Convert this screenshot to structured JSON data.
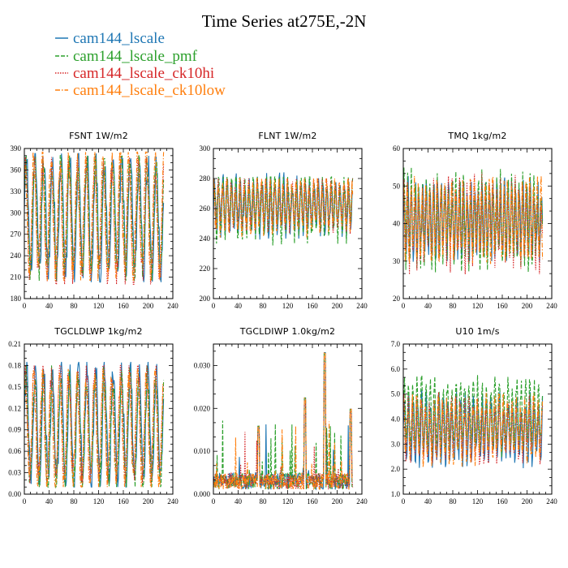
{
  "figure": {
    "title": "Time Series at275E,-2N"
  },
  "colors": {
    "cam144_lscale": "#1f77b4",
    "cam144_lscale_pmf": "#2ca02c",
    "cam144_lscale_ck10hi": "#d62728",
    "cam144_lscale_ck10low": "#ff7f0e"
  },
  "legend": [
    {
      "label": "cam144_lscale",
      "color": "#1f77b4",
      "style": "solid"
    },
    {
      "label": "cam144_lscale_pmf",
      "color": "#2ca02c",
      "style": "dashed"
    },
    {
      "label": "cam144_lscale_ck10hi",
      "color": "#d62728",
      "style": "dotted"
    },
    {
      "label": "cam144_lscale_ck10low",
      "color": "#ff7f0e",
      "style": "dash-dot"
    }
  ],
  "chart_data": [
    {
      "type": "line",
      "title": "FSNT   1W/m2",
      "xlim": [
        0,
        240
      ],
      "ylim": [
        180,
        390
      ],
      "xticks": [
        0,
        40,
        80,
        120,
        160,
        200,
        240
      ],
      "yticks": [
        180,
        210,
        240,
        270,
        300,
        330,
        360,
        390
      ],
      "ytick_labels": [
        "180",
        "210",
        "240",
        "270",
        "300",
        "330",
        "360",
        "390"
      ],
      "n_points": 226,
      "series": [
        {
          "name": "cam144_lscale",
          "x_range": [
            0,
            225
          ],
          "approx_y_range": [
            203,
            383
          ],
          "approx_mean": 295,
          "approx_period": 14
        },
        {
          "name": "cam144_lscale_pmf",
          "x_range": [
            0,
            225
          ],
          "approx_y_range": [
            205,
            380
          ],
          "approx_mean": 295,
          "approx_period": 14
        },
        {
          "name": "cam144_lscale_ck10hi",
          "x_range": [
            0,
            225
          ],
          "approx_y_range": [
            200,
            378
          ],
          "approx_mean": 290,
          "approx_period": 14
        },
        {
          "name": "cam144_lscale_ck10low",
          "x_range": [
            0,
            225
          ],
          "approx_y_range": [
            205,
            385
          ],
          "approx_mean": 297,
          "approx_period": 14
        }
      ]
    },
    {
      "type": "line",
      "title": "FLNT   1W/m2",
      "xlim": [
        0,
        240
      ],
      "ylim": [
        200,
        300
      ],
      "xticks": [
        0,
        40,
        80,
        120,
        160,
        200,
        240
      ],
      "yticks": [
        200,
        220,
        240,
        260,
        280,
        300
      ],
      "ytick_labels": [
        "200",
        "220",
        "240",
        "260",
        "280",
        "300"
      ],
      "n_points": 226,
      "series": [
        {
          "name": "cam144_lscale",
          "x_range": [
            0,
            225
          ],
          "approx_y_range": [
            228,
            285
          ],
          "approx_mean": 262,
          "approx_period": 7
        },
        {
          "name": "cam144_lscale_pmf",
          "x_range": [
            0,
            225
          ],
          "approx_y_range": [
            214,
            281
          ],
          "approx_mean": 262,
          "approx_period": 7
        },
        {
          "name": "cam144_lscale_ck10hi",
          "x_range": [
            0,
            225
          ],
          "approx_y_range": [
            227,
            280
          ],
          "approx_mean": 263,
          "approx_period": 7
        },
        {
          "name": "cam144_lscale_ck10low",
          "x_range": [
            0,
            225
          ],
          "approx_y_range": [
            225,
            280
          ],
          "approx_mean": 262,
          "approx_period": 7
        }
      ]
    },
    {
      "type": "line",
      "title": "TMQ   1kg/m2",
      "xlim": [
        0,
        240
      ],
      "ylim": [
        20,
        60
      ],
      "xticks": [
        0,
        40,
        80,
        120,
        160,
        200,
        240
      ],
      "yticks": [
        20,
        30,
        40,
        50,
        60
      ],
      "ytick_labels": [
        "20",
        "30",
        "40",
        "50",
        "60"
      ],
      "n_points": 226,
      "series": [
        {
          "name": "cam144_lscale",
          "x_range": [
            0,
            225
          ],
          "approx_y_range": [
            26,
            57
          ],
          "approx_mean": 41,
          "approx_period": 6
        },
        {
          "name": "cam144_lscale_pmf",
          "x_range": [
            0,
            225
          ],
          "approx_y_range": [
            22,
            57
          ],
          "approx_mean": 41,
          "approx_period": 6
        },
        {
          "name": "cam144_lscale_ck10hi",
          "x_range": [
            0,
            225
          ],
          "approx_y_range": [
            21,
            55
          ],
          "approx_mean": 40,
          "approx_period": 6
        },
        {
          "name": "cam144_lscale_ck10low",
          "x_range": [
            0,
            225
          ],
          "approx_y_range": [
            26,
            58
          ],
          "approx_mean": 41,
          "approx_period": 6
        }
      ]
    },
    {
      "type": "line",
      "title": "TGCLDLWP   1kg/m2",
      "xlim": [
        0,
        240
      ],
      "ylim": [
        0,
        0.21
      ],
      "xticks": [
        0,
        40,
        80,
        120,
        160,
        200,
        240
      ],
      "yticks": [
        0,
        0.03,
        0.06,
        0.09,
        0.12,
        0.15,
        0.18,
        0.21
      ],
      "ytick_labels": [
        "0.00",
        "0.03",
        "0.06",
        "0.09",
        "0.12",
        "0.15",
        "0.18",
        "0.21"
      ],
      "n_points": 226,
      "series": [
        {
          "name": "cam144_lscale",
          "x_range": [
            0,
            225
          ],
          "approx_y_range": [
            0.01,
            0.185
          ],
          "approx_mean": 0.095,
          "approx_period": 14
        },
        {
          "name": "cam144_lscale_pmf",
          "x_range": [
            0,
            225
          ],
          "approx_y_range": [
            0.01,
            0.18
          ],
          "approx_mean": 0.09,
          "approx_period": 14
        },
        {
          "name": "cam144_lscale_ck10hi",
          "x_range": [
            0,
            225
          ],
          "approx_y_range": [
            0.015,
            0.18
          ],
          "approx_mean": 0.1,
          "approx_period": 14
        },
        {
          "name": "cam144_lscale_ck10low",
          "x_range": [
            0,
            225
          ],
          "approx_y_range": [
            0.01,
            0.175
          ],
          "approx_mean": 0.09,
          "approx_period": 14
        }
      ]
    },
    {
      "type": "line",
      "title": "TGCLDIWP   1.0kg/m2",
      "xlim": [
        0,
        240
      ],
      "ylim": [
        0,
        0.035
      ],
      "xticks": [
        0,
        40,
        80,
        120,
        160,
        200,
        240
      ],
      "yticks": [
        0,
        0.01,
        0.02,
        0.03
      ],
      "ytick_labels": [
        "0.000",
        "0.010",
        "0.020",
        "0.030"
      ],
      "n_points": 226,
      "series": [
        {
          "name": "cam144_lscale",
          "x_range": [
            0,
            225
          ],
          "approx_y_range": [
            0,
            0.033
          ],
          "approx_mean": 0.003,
          "approx_period": 5
        },
        {
          "name": "cam144_lscale_pmf",
          "x_range": [
            0,
            225
          ],
          "approx_y_range": [
            0,
            0.033
          ],
          "approx_mean": 0.003,
          "approx_period": 5
        },
        {
          "name": "cam144_lscale_ck10hi",
          "x_range": [
            0,
            225
          ],
          "approx_y_range": [
            0,
            0.032
          ],
          "approx_mean": 0.003,
          "approx_period": 5
        },
        {
          "name": "cam144_lscale_ck10low",
          "x_range": [
            0,
            225
          ],
          "approx_y_range": [
            0,
            0.033
          ],
          "approx_mean": 0.003,
          "approx_period": 5
        }
      ]
    },
    {
      "type": "line",
      "title": "U10   1m/s",
      "xlim": [
        0,
        240
      ],
      "ylim": [
        1,
        7
      ],
      "xticks": [
        0,
        40,
        80,
        120,
        160,
        200,
        240
      ],
      "yticks": [
        1,
        2,
        3,
        4,
        5,
        6,
        7
      ],
      "ytick_labels": [
        "1.0",
        "2.0",
        "3.0",
        "4.0",
        "5.0",
        "6.0",
        "7.0"
      ],
      "n_points": 226,
      "series": [
        {
          "name": "cam144_lscale",
          "x_range": [
            0,
            225
          ],
          "approx_y_range": [
            1.5,
            5.6
          ],
          "approx_mean": 3.6,
          "approx_period": 7
        },
        {
          "name": "cam144_lscale_pmf",
          "x_range": [
            0,
            225
          ],
          "approx_y_range": [
            2.0,
            6.4
          ],
          "approx_mean": 4.2,
          "approx_period": 7
        },
        {
          "name": "cam144_lscale_ck10hi",
          "x_range": [
            0,
            225
          ],
          "approx_y_range": [
            1.8,
            5.5
          ],
          "approx_mean": 3.6,
          "approx_period": 7
        },
        {
          "name": "cam144_lscale_ck10low",
          "x_range": [
            0,
            225
          ],
          "approx_y_range": [
            1.8,
            5.6
          ],
          "approx_mean": 3.6,
          "approx_period": 7
        }
      ]
    }
  ]
}
